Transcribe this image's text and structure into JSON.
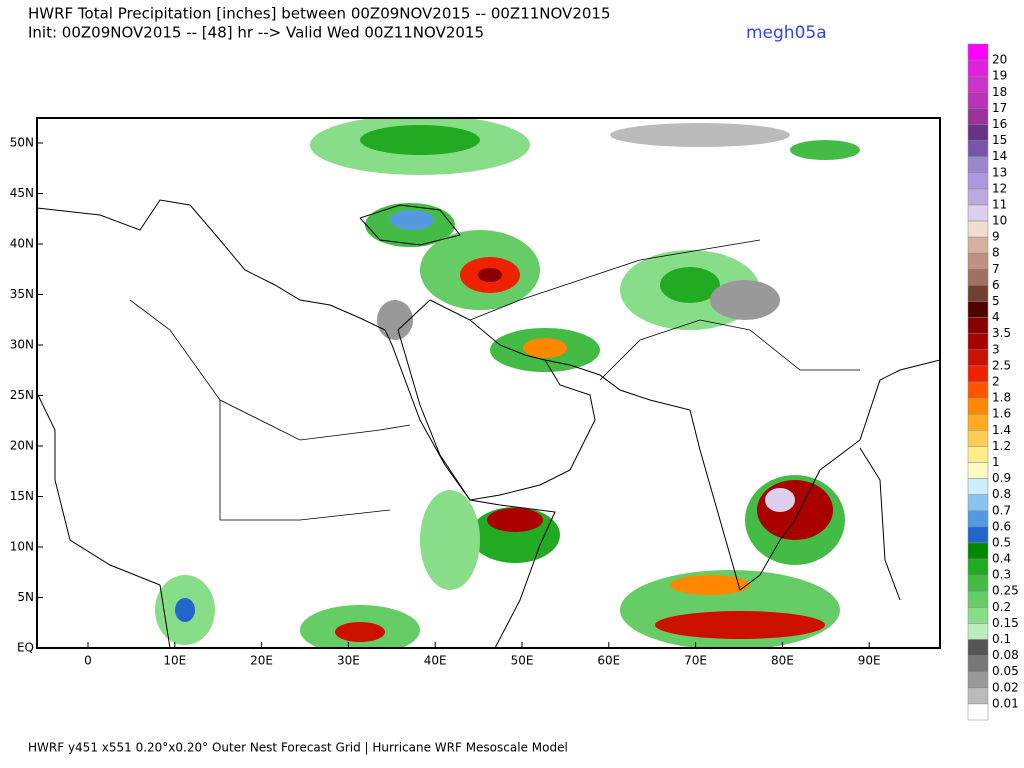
{
  "header": {
    "title": "HWRF Total Precipitation [inches] between 00Z09NOV2015 -- 00Z11NOV2015",
    "subtitle": "Init: 00Z09NOV2015 -- [48] hr --> Valid Wed 00Z11NOV2015",
    "run_id": "megh05a"
  },
  "map": {
    "lat_labels": [
      "EQ",
      "5N",
      "10N",
      "15N",
      "20N",
      "25N",
      "30N",
      "35N",
      "40N",
      "45N",
      "50N"
    ],
    "lon_labels": [
      "0",
      "10E",
      "20E",
      "30E",
      "40E",
      "50E",
      "60E",
      "70E",
      "80E",
      "90E"
    ]
  },
  "colorbar": {
    "labels": [
      "20",
      "19",
      "18",
      "17",
      "16",
      "15",
      "14",
      "13",
      "12",
      "11",
      "10",
      "9",
      "8",
      "7",
      "6",
      "5",
      "4",
      "3.5",
      "3",
      "2.5",
      "2",
      "1.8",
      "1.6",
      "1.4",
      "1.2",
      "1",
      "0.9",
      "0.8",
      "0.7",
      "0.6",
      "0.5",
      "0.4",
      "0.3",
      "0.25",
      "0.2",
      "0.15",
      "0.1",
      "0.08",
      "0.05",
      "0.02",
      "0.01"
    ],
    "colors": [
      "#ff00ff",
      "#e022e0",
      "#cc33cc",
      "#b833b8",
      "#993399",
      "#663388",
      "#7755aa",
      "#9988cc",
      "#aa99dd",
      "#bbaadd",
      "#ddd0ee",
      "#f2dcd0",
      "#d8b0a0",
      "#c09080",
      "#a07060",
      "#704030",
      "#500000",
      "#880000",
      "#aa0000",
      "#cc1100",
      "#ee2200",
      "#ff5500",
      "#ff8800",
      "#ffaa22",
      "#ffcc55",
      "#ffee88",
      "#fffac0",
      "#cceeff",
      "#88c4f0",
      "#5599e0",
      "#2266cc",
      "#008800",
      "#22aa22",
      "#44bb44",
      "#66cc66",
      "#88dd88",
      "#bbeebb",
      "#555555",
      "#777777",
      "#999999",
      "#bbbbbb",
      "#ffffff"
    ]
  },
  "footer": "HWRF y451 x551 0.20°x0.20° Outer Nest Forecast Grid | Hurricane WRF Mesoscale Model"
}
